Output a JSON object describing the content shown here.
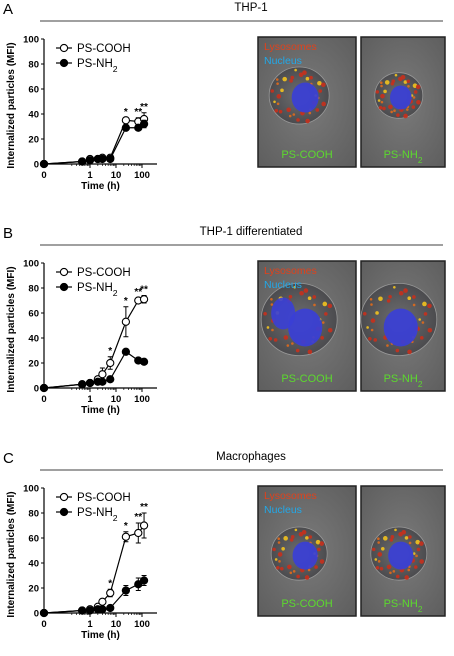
{
  "panels": [
    {
      "letter": "A",
      "title": "THP-1",
      "legend": [
        "PS-COOH",
        "PS-NH2"
      ],
      "images": [
        {
          "lines": [
            "Lysosomes",
            "Nucleus"
          ],
          "label": "PS-COOH"
        },
        {
          "lines": [],
          "label": "PS-NH2"
        }
      ]
    },
    {
      "letter": "B",
      "title": "THP-1 differentiated",
      "legend": [
        "PS-COOH",
        "PS-NH2"
      ],
      "images": [
        {
          "lines": [
            "Lysosomes",
            "Nucleus"
          ],
          "label": "PS-COOH"
        },
        {
          "lines": [],
          "label": "PS-NH2"
        }
      ]
    },
    {
      "letter": "C",
      "title": "Macrophages",
      "legend": [
        "PS-COOH",
        "PS-NH2"
      ],
      "images": [
        {
          "lines": [
            "Lysosomes",
            "Nucleus"
          ],
          "label": "PS-COOH"
        },
        {
          "lines": [],
          "label": "PS-NH2"
        }
      ]
    }
  ],
  "chart_data": [
    {
      "type": "line",
      "xlabel": "Time (h)",
      "ylabel": "Internalized particles (MFI)",
      "x_scale": "log-with-zero",
      "ylim": [
        0,
        100
      ],
      "yticks": [
        0,
        20,
        40,
        60,
        80,
        100
      ],
      "xtick_labels": [
        "0",
        "1",
        "10",
        "100"
      ],
      "x": [
        0,
        0.5,
        1,
        2,
        3,
        6,
        24,
        72,
        120
      ],
      "series": [
        {
          "name": "PS-COOH",
          "marker": "open",
          "values": [
            0,
            2,
            4,
            4,
            5,
            5,
            35,
            34,
            36
          ],
          "errors": [
            0,
            0.5,
            0.5,
            0.5,
            0.5,
            0.5,
            2,
            3,
            5
          ]
        },
        {
          "name": "PS-NH2",
          "marker": "filled",
          "values": [
            0,
            2,
            3,
            4,
            4,
            4,
            29,
            29,
            32
          ],
          "errors": [
            0,
            0.5,
            0.5,
            0.5,
            0.5,
            0.5,
            2,
            2,
            3
          ]
        }
      ],
      "significance": [
        {
          "x": 24,
          "label": "*"
        },
        {
          "x": 72,
          "label": "**"
        },
        {
          "x": 120,
          "label": "**"
        }
      ]
    },
    {
      "type": "line",
      "xlabel": "Time (h)",
      "ylabel": "Internalized particles (MFI)",
      "x_scale": "log-with-zero",
      "ylim": [
        0,
        100
      ],
      "yticks": [
        0,
        20,
        40,
        60,
        80,
        100
      ],
      "xtick_labels": [
        "0",
        "1",
        "10",
        "100"
      ],
      "x": [
        0,
        0.5,
        1,
        2,
        3,
        6,
        24,
        72,
        120
      ],
      "series": [
        {
          "name": "PS-COOH",
          "marker": "open",
          "values": [
            0,
            3,
            4,
            7,
            11,
            20,
            53,
            70,
            71
          ],
          "errors": [
            0,
            1,
            1,
            2,
            5,
            5,
            12,
            2,
            3
          ]
        },
        {
          "name": "PS-NH2",
          "marker": "filled",
          "values": [
            0,
            3,
            4,
            5,
            5,
            7,
            29,
            22,
            21
          ],
          "errors": [
            0,
            1,
            1,
            1,
            1,
            2,
            1,
            2,
            2
          ]
        }
      ],
      "significance": [
        {
          "x": 6,
          "label": "*"
        },
        {
          "x": 24,
          "label": "*"
        },
        {
          "x": 72,
          "label": "**"
        },
        {
          "x": 120,
          "label": "**"
        }
      ]
    },
    {
      "type": "line",
      "xlabel": "Time (h)",
      "ylabel": "Internalized particles (MFI)",
      "x_scale": "log-with-zero",
      "ylim": [
        0,
        100
      ],
      "yticks": [
        0,
        20,
        40,
        60,
        80,
        100
      ],
      "xtick_labels": [
        "0",
        "1",
        "10",
        "100"
      ],
      "x": [
        0,
        0.5,
        1,
        2,
        3,
        6,
        24,
        72,
        120
      ],
      "series": [
        {
          "name": "PS-COOH",
          "marker": "open",
          "values": [
            0,
            2,
            3,
            5,
            9,
            16,
            61,
            64,
            70
          ],
          "errors": [
            0,
            1,
            1,
            1,
            2,
            3,
            4,
            8,
            10
          ]
        },
        {
          "name": "PS-NH2",
          "marker": "filled",
          "values": [
            0,
            2,
            2,
            3,
            3,
            4,
            18,
            23,
            26
          ],
          "errors": [
            0,
            1,
            1,
            1,
            1,
            1,
            4,
            5,
            4
          ]
        }
      ],
      "significance": [
        {
          "x": 6,
          "label": "*"
        },
        {
          "x": 24,
          "label": "*"
        },
        {
          "x": 72,
          "label": "**"
        },
        {
          "x": 120,
          "label": "**"
        }
      ]
    }
  ]
}
